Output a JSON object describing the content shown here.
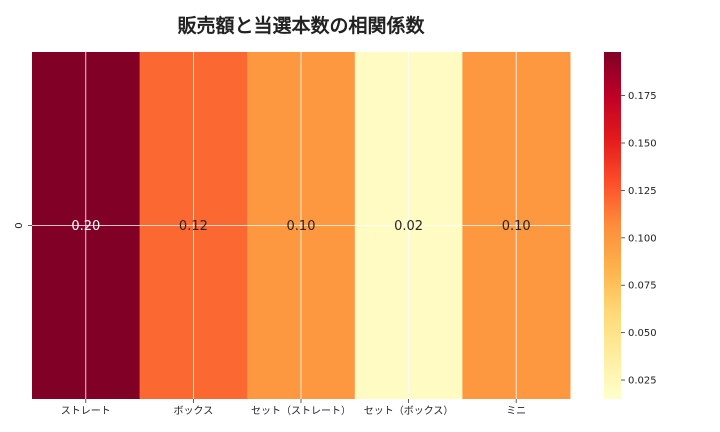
{
  "chart_data": {
    "type": "heatmap",
    "title": "販売額と当選本数の相関係数",
    "x_categories": [
      "ストレート",
      "ボックス",
      "セット（ストレート）",
      "セット（ボックス）",
      "ミニ"
    ],
    "y_categories": [
      "0"
    ],
    "values": [
      [
        0.2,
        0.12,
        0.1,
        0.02,
        0.1
      ]
    ],
    "value_labels": [
      "0.20",
      "0.12",
      "0.10",
      "0.02",
      "0.10"
    ],
    "colorbar": {
      "min": 0.015,
      "max": 0.198,
      "ticks": [
        "0.025",
        "0.050",
        "0.075",
        "0.100",
        "0.125",
        "0.150",
        "0.175"
      ],
      "colormap": "YlOrRd"
    },
    "grid": true,
    "xlabel": "",
    "ylabel": ""
  }
}
